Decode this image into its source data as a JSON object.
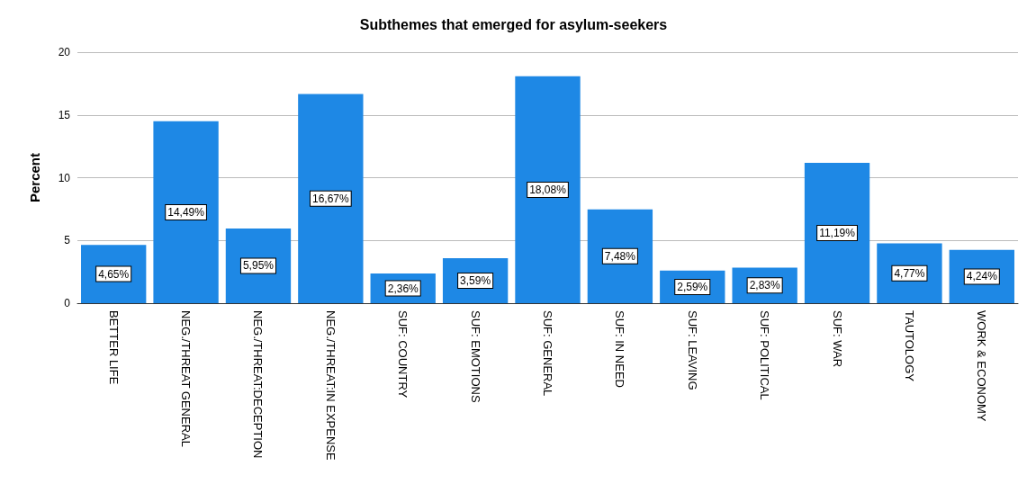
{
  "chart_data": {
    "type": "bar",
    "title": "Subthemes that emerged for asylum-seekers",
    "ylabel": "Percent",
    "categories": [
      "BETTER LIFE",
      "NEG./THREAT GENERAL",
      "NEG./THREAT:DECEPTION",
      "NEG./THREAT:IN EXPENSE",
      "SUF: COUNTRY",
      "SUF: EMOTIONS",
      "SUF: GENERAL",
      "SUF: IN NEED",
      "SUF: LEAVING",
      "SUF: POLITICAL",
      "SUF: WAR",
      "TAUTOLOGY",
      "WORK & ECONOMY"
    ],
    "values": [
      4.65,
      14.49,
      5.95,
      16.67,
      2.36,
      3.59,
      18.08,
      7.48,
      2.59,
      2.83,
      11.19,
      4.77,
      4.24
    ],
    "value_labels": [
      "4,65%",
      "14,49%",
      "5,95%",
      "16,67%",
      "2,36%",
      "3,59%",
      "18,08%",
      "7,48%",
      "2,59%",
      "2,83%",
      "11,19%",
      "4,77%",
      "4,24%"
    ],
    "color": "#1e88e5",
    "ylim": [
      0,
      20
    ],
    "yticks": [
      0,
      5,
      10,
      15,
      20
    ],
    "grid": "y"
  }
}
